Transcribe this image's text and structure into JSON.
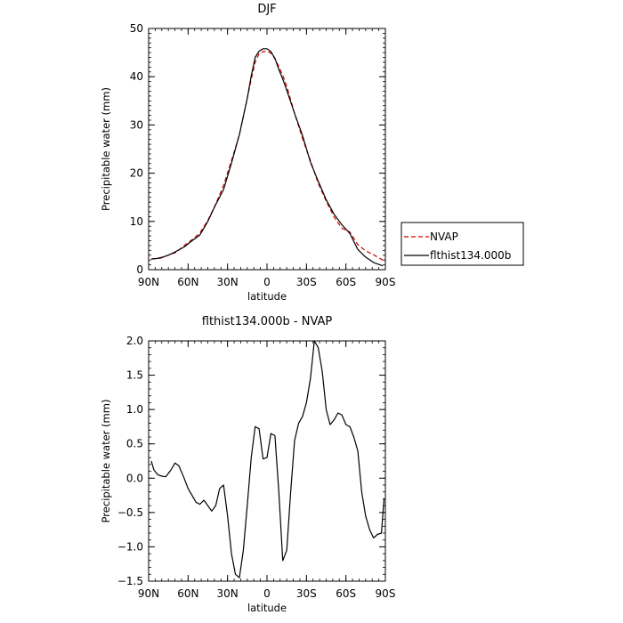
{
  "chart_data": [
    {
      "type": "line",
      "title": "DJF",
      "xlabel": "latitude",
      "ylabel": "Precipitable water (mm)",
      "ylim": [
        0,
        50
      ],
      "xlim": [
        90,
        -90
      ],
      "x_ticks": [
        90,
        60,
        30,
        0,
        -30,
        -60,
        -90
      ],
      "x_tick_labels": [
        "90N",
        "60N",
        "30N",
        "0",
        "30S",
        "60S",
        "90S"
      ],
      "y_ticks": [
        0,
        10,
        20,
        30,
        40,
        50
      ],
      "y_tick_labels": [
        "0",
        "10",
        "20",
        "30",
        "40",
        "50"
      ],
      "grid": false,
      "legend": "right",
      "series": [
        {
          "name": "NVAP",
          "color": "#cc0000",
          "style": "dashed",
          "x": [
            88,
            81,
            75,
            69,
            63,
            57,
            51,
            45,
            39,
            33,
            27,
            21,
            15,
            12,
            9,
            6,
            3,
            0,
            -3,
            -6,
            -9,
            -12,
            -15,
            -21,
            -27,
            -33,
            -39,
            -45,
            -51,
            -57,
            -63,
            -69,
            -75,
            -81,
            -88
          ],
          "y": [
            2.2,
            2.5,
            3.0,
            3.6,
            5.0,
            6.2,
            7.6,
            10.2,
            13.6,
            17.5,
            22.6,
            28.0,
            35.5,
            39.5,
            43.0,
            44.8,
            45.2,
            45.3,
            44.9,
            43.7,
            42.1,
            40.3,
            38.0,
            32.4,
            27.2,
            22.6,
            17.9,
            14.2,
            10.9,
            8.6,
            7.8,
            5.2,
            3.9,
            3.1,
            2.0
          ]
        },
        {
          "name": "flthist134.000b",
          "color": "#000000",
          "style": "solid",
          "x": [
            88,
            81,
            75,
            69,
            63,
            57,
            51,
            45,
            39,
            33,
            27,
            21,
            15,
            12,
            9,
            6,
            3,
            0,
            -3,
            -6,
            -9,
            -12,
            -15,
            -21,
            -27,
            -33,
            -39,
            -45,
            -51,
            -57,
            -63,
            -69,
            -75,
            -81,
            -88
          ],
          "y": [
            2.2,
            2.4,
            3.0,
            3.8,
            4.7,
            6.0,
            7.2,
            10.0,
            13.5,
            16.6,
            22.1,
            28.0,
            35.5,
            40.2,
            44.0,
            45.3,
            45.8,
            45.8,
            45.2,
            43.8,
            41.5,
            39.5,
            37.2,
            32.4,
            27.8,
            22.3,
            18.3,
            14.5,
            11.5,
            9.3,
            7.5,
            4.2,
            2.6,
            1.5,
            0.8
          ]
        }
      ]
    },
    {
      "type": "line",
      "title": "flthist134.000b - NVAP",
      "xlabel": "latitude",
      "ylabel": "Precipitable water (mm)",
      "ylim": [
        -1.5,
        2.0
      ],
      "xlim": [
        90,
        -90
      ],
      "x_ticks": [
        90,
        60,
        30,
        0,
        -30,
        -60,
        -90
      ],
      "x_tick_labels": [
        "90N",
        "60N",
        "30N",
        "0",
        "30S",
        "60S",
        "90S"
      ],
      "y_ticks": [
        -1.5,
        -1.0,
        -0.5,
        0.0,
        0.5,
        1.0,
        1.5,
        2.0
      ],
      "y_tick_labels": [
        "−1.5",
        "−1.0",
        "−0.5",
        "0.0",
        "0.5",
        "1.0",
        "1.5",
        "2.0"
      ],
      "grid": false,
      "series": [
        {
          "color": "#000000",
          "style": "solid",
          "x": [
            88,
            86,
            83,
            80,
            77,
            73,
            70,
            67,
            63,
            60,
            57,
            54,
            51,
            48,
            45,
            42,
            39,
            36,
            33,
            30,
            27,
            24,
            21,
            18,
            15,
            12,
            9,
            6,
            3,
            0,
            -3,
            -6,
            -9,
            -12,
            -15,
            -18,
            -21,
            -24,
            -27,
            -30,
            -33,
            -36,
            -39,
            -42,
            -45,
            -48,
            -51,
            -54,
            -57,
            -60,
            -63,
            -66,
            -69,
            -72,
            -75,
            -78,
            -81,
            -84,
            -87,
            -89
          ],
          "y": [
            0.25,
            0.12,
            0.05,
            0.03,
            0.02,
            0.12,
            0.22,
            0.18,
            0.0,
            -0.15,
            -0.25,
            -0.35,
            -0.38,
            -0.32,
            -0.4,
            -0.48,
            -0.4,
            -0.15,
            -0.1,
            -0.55,
            -1.1,
            -1.4,
            -1.45,
            -1.05,
            -0.4,
            0.3,
            0.75,
            0.72,
            0.28,
            0.3,
            0.65,
            0.62,
            -0.2,
            -1.2,
            -1.05,
            -0.2,
            0.55,
            0.8,
            0.9,
            1.1,
            1.45,
            2.0,
            1.9,
            1.55,
            1.0,
            0.78,
            0.85,
            0.95,
            0.92,
            0.78,
            0.75,
            0.6,
            0.4,
            -0.2,
            -0.55,
            -0.75,
            -0.87,
            -0.82,
            -0.8,
            -0.3
          ]
        }
      ]
    }
  ]
}
